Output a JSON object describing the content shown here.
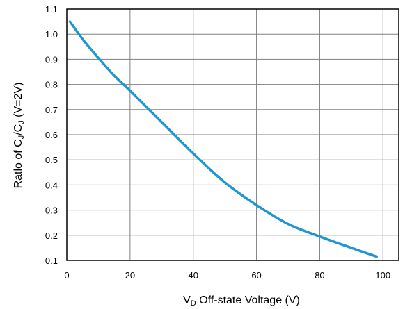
{
  "chart_data": {
    "type": "line",
    "xlabel_main": "V",
    "xlabel_sub": "D",
    "xlabel_rest": " Off-state Voltage  (V)",
    "ylabel_prefix": "Ratlo of C",
    "ylabel_sub1": "J",
    "ylabel_mid": "/C",
    "ylabel_sub2": "J",
    "ylabel_suffix": " (V=2V)",
    "xlim": [
      0,
      105
    ],
    "ylim": [
      0.1,
      1.1
    ],
    "x_ticks": [
      0,
      20,
      40,
      60,
      80,
      100
    ],
    "y_ticks": [
      0.1,
      0.2,
      0.3,
      0.4,
      0.5,
      0.6,
      0.7,
      0.8,
      0.9,
      1.0,
      1.1
    ],
    "y_tick_labels": [
      "0.1",
      "0.2",
      "0.3",
      "0.4",
      "0.5",
      "0.6",
      "0.7",
      "0.8",
      "0.9",
      "1.0",
      "1.1"
    ],
    "grid": true,
    "line_color": "#1e96d2",
    "series": [
      {
        "x": [
          1,
          5,
          10,
          15,
          20,
          30,
          40,
          50,
          60,
          70,
          80,
          90,
          98
        ],
        "values": [
          1.05,
          0.98,
          0.905,
          0.835,
          0.775,
          0.65,
          0.525,
          0.41,
          0.32,
          0.245,
          0.195,
          0.15,
          0.115
        ]
      }
    ]
  }
}
